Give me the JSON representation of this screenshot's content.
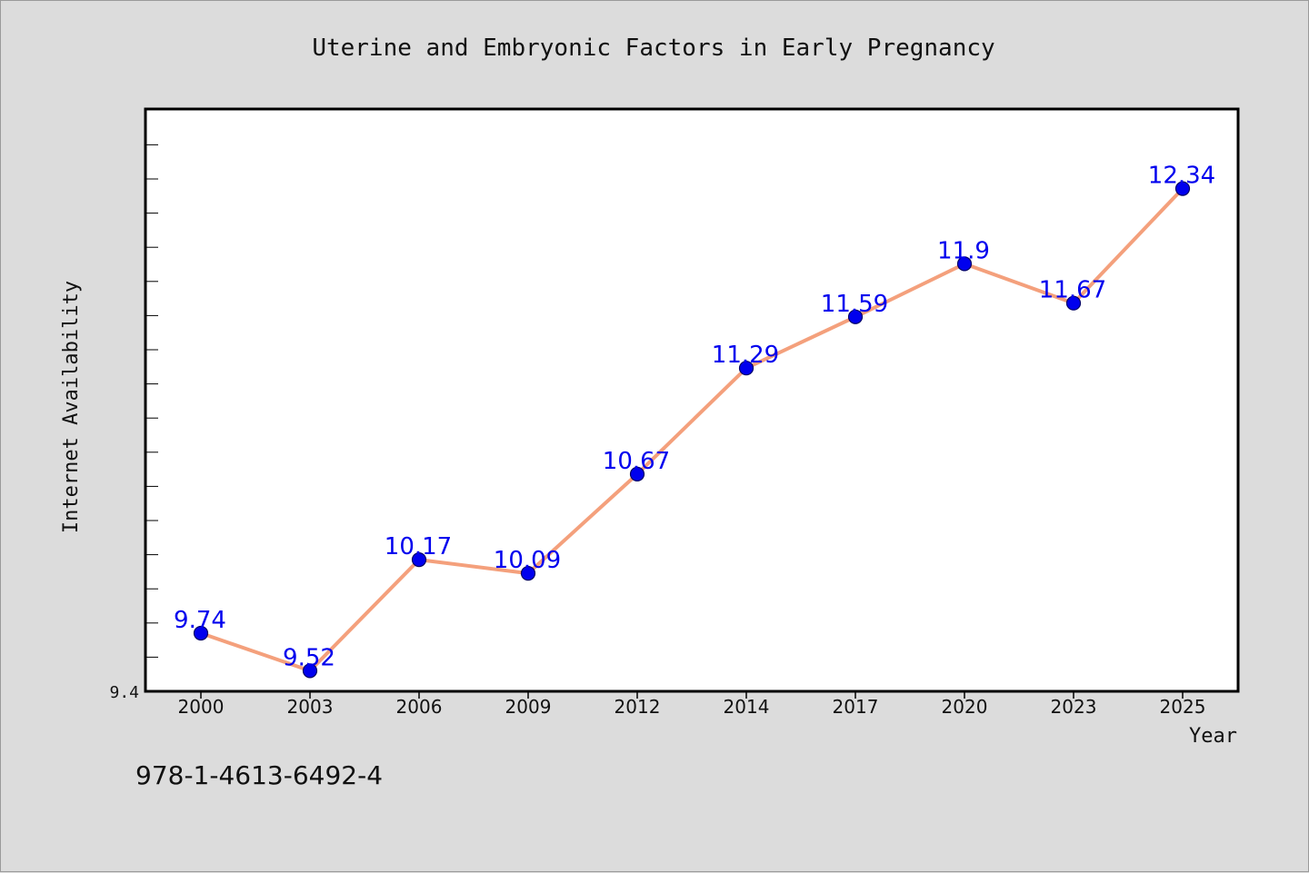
{
  "chart_data": {
    "type": "line",
    "title": "Uterine and Embryonic Factors in Early Pregnancy",
    "xlabel": "Year",
    "ylabel": "Internet Availability",
    "categories": [
      "2000",
      "2003",
      "2006",
      "2009",
      "2012",
      "2014",
      "2017",
      "2020",
      "2023",
      "2025"
    ],
    "series": [
      {
        "values": [
          9.74,
          9.52,
          10.17,
          10.09,
          10.67,
          11.29,
          11.59,
          11.9,
          11.67,
          12.34
        ],
        "labels": [
          "9.74",
          "9.52",
          "10.17",
          "10.09",
          "10.67",
          "11.29",
          "11.59",
          "11.9",
          "11.67",
          "12.34"
        ]
      }
    ],
    "ylim": [
      9.4,
      12.8
    ],
    "ytick_labels": [
      "9.4"
    ],
    "grid": false,
    "legend": "none",
    "colors": {
      "line": "#f4a07c",
      "marker": "#0000ee",
      "marker_edge": "#000066",
      "data_label": "#0000ee",
      "background": "#dcdcdc",
      "plot_area": "#ffffff"
    }
  },
  "footer": {
    "isbn": "978-1-4613-6492-4"
  }
}
